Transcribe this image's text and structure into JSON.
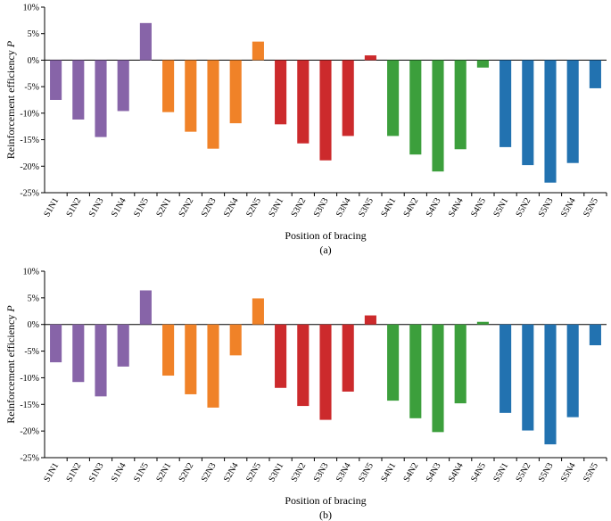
{
  "chart_data": [
    {
      "type": "bar",
      "panel_label": "(a)",
      "xlabel": "Position of bracing",
      "ylabel": "Reinforcement efficiency ",
      "ylabel_symbol": "P",
      "ylim": [
        -25,
        10
      ],
      "yticks": [
        -25,
        -20,
        -15,
        -10,
        -5,
        0,
        5,
        10
      ],
      "ytick_labels": [
        "-25%",
        "-20%",
        "-15%",
        "-10%",
        "-5%",
        "0%",
        "5%",
        "10%"
      ],
      "categories": [
        "S1N1",
        "S1N2",
        "S1N3",
        "S1N4",
        "S1N5",
        "S2N1",
        "S2N2",
        "S2N3",
        "S2N4",
        "S2N5",
        "S3N1",
        "S3N2",
        "S3N3",
        "S3N4",
        "S3N5",
        "S4N1",
        "S4N2",
        "S4N3",
        "S4N4",
        "S4N5",
        "S5N1",
        "S5N2",
        "S5N3",
        "S5N4",
        "S5N5"
      ],
      "values": [
        -7.5,
        -11.2,
        -14.5,
        -9.6,
        7.0,
        -9.8,
        -13.5,
        -16.7,
        -11.9,
        3.5,
        -12.1,
        -15.7,
        -18.9,
        -14.3,
        0.9,
        -14.3,
        -17.8,
        -21.0,
        -16.8,
        -1.4,
        -16.4,
        -19.8,
        -23.1,
        -19.4,
        -5.3
      ],
      "colors": [
        "#8764a8",
        "#8764a8",
        "#8764a8",
        "#8764a8",
        "#8764a8",
        "#f08228",
        "#f08228",
        "#f08228",
        "#f08228",
        "#f08228",
        "#cc2a2c",
        "#cc2a2c",
        "#cc2a2c",
        "#cc2a2c",
        "#cc2a2c",
        "#3c9f3c",
        "#3c9f3c",
        "#3c9f3c",
        "#3c9f3c",
        "#3c9f3c",
        "#2272b0",
        "#2272b0",
        "#2272b0",
        "#2272b0",
        "#2272b0"
      ],
      "grid": false
    },
    {
      "type": "bar",
      "panel_label": "(b)",
      "xlabel": "Position of bracing",
      "ylabel": "Reinforcement efficiency ",
      "ylabel_symbol": "P",
      "ylim": [
        -25,
        10
      ],
      "yticks": [
        -25,
        -20,
        -15,
        -10,
        -5,
        0,
        5,
        10
      ],
      "ytick_labels": [
        "-25%",
        "-20%",
        "-15%",
        "-10%",
        "-5%",
        "0%",
        "5%",
        "10%"
      ],
      "categories": [
        "S1N1",
        "S1N2",
        "S1N3",
        "S1N4",
        "S1N5",
        "S2N1",
        "S2N2",
        "S2N3",
        "S2N4",
        "S2N5",
        "S3N1",
        "S3N2",
        "S3N3",
        "S3N4",
        "S3N5",
        "S4N1",
        "S4N2",
        "S4N3",
        "S4N4",
        "S4N5",
        "S5N1",
        "S5N2",
        "S5N3",
        "S5N4",
        "S5N5"
      ],
      "values": [
        -7.1,
        -10.8,
        -13.5,
        -7.9,
        6.4,
        -9.6,
        -13.1,
        -15.6,
        -5.8,
        4.9,
        -11.9,
        -15.3,
        -17.9,
        -12.6,
        1.7,
        -14.3,
        -17.6,
        -20.2,
        -14.8,
        0.5,
        -16.6,
        -19.9,
        -22.5,
        -17.4,
        -3.9
      ],
      "colors": [
        "#8764a8",
        "#8764a8",
        "#8764a8",
        "#8764a8",
        "#8764a8",
        "#f08228",
        "#f08228",
        "#f08228",
        "#f08228",
        "#f08228",
        "#cc2a2c",
        "#cc2a2c",
        "#cc2a2c",
        "#cc2a2c",
        "#cc2a2c",
        "#3c9f3c",
        "#3c9f3c",
        "#3c9f3c",
        "#3c9f3c",
        "#3c9f3c",
        "#2272b0",
        "#2272b0",
        "#2272b0",
        "#2272b0",
        "#2272b0"
      ],
      "grid": false
    }
  ]
}
